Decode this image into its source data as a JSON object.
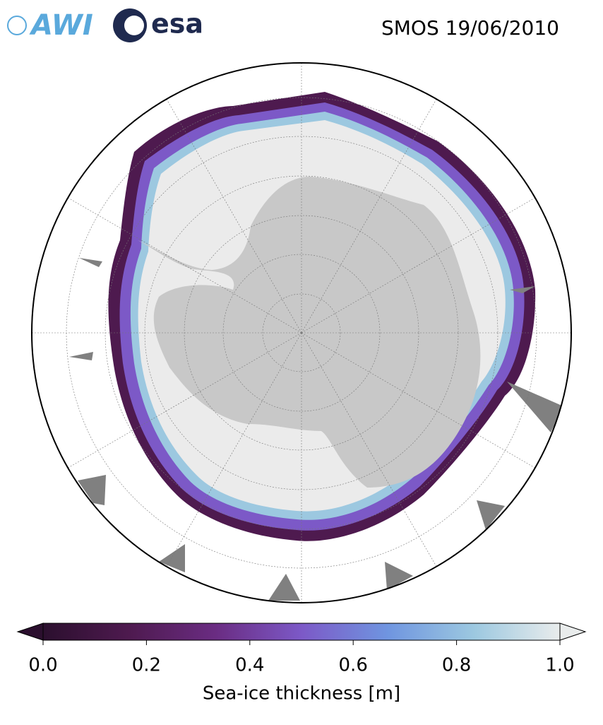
{
  "header": {
    "logos": [
      "AWI",
      "esa"
    ],
    "title": "SMOS 19/06/2010"
  },
  "colorbar": {
    "label": "Sea-ice thickness [m]",
    "lim": [
      0,
      1
    ],
    "ticks": [
      {
        "value": 0,
        "label": "0.0"
      },
      0.2,
      0.4,
      0.6,
      0.8,
      {
        "value": 1,
        "label": "1.0"
      }
    ],
    "colormap": [
      "#2b0f2e",
      "#4e1a4f",
      "#6a2c82",
      "#7c59c7",
      "#6f95e0",
      "#9cc8e0",
      "#e9ecec"
    ]
  }
}
